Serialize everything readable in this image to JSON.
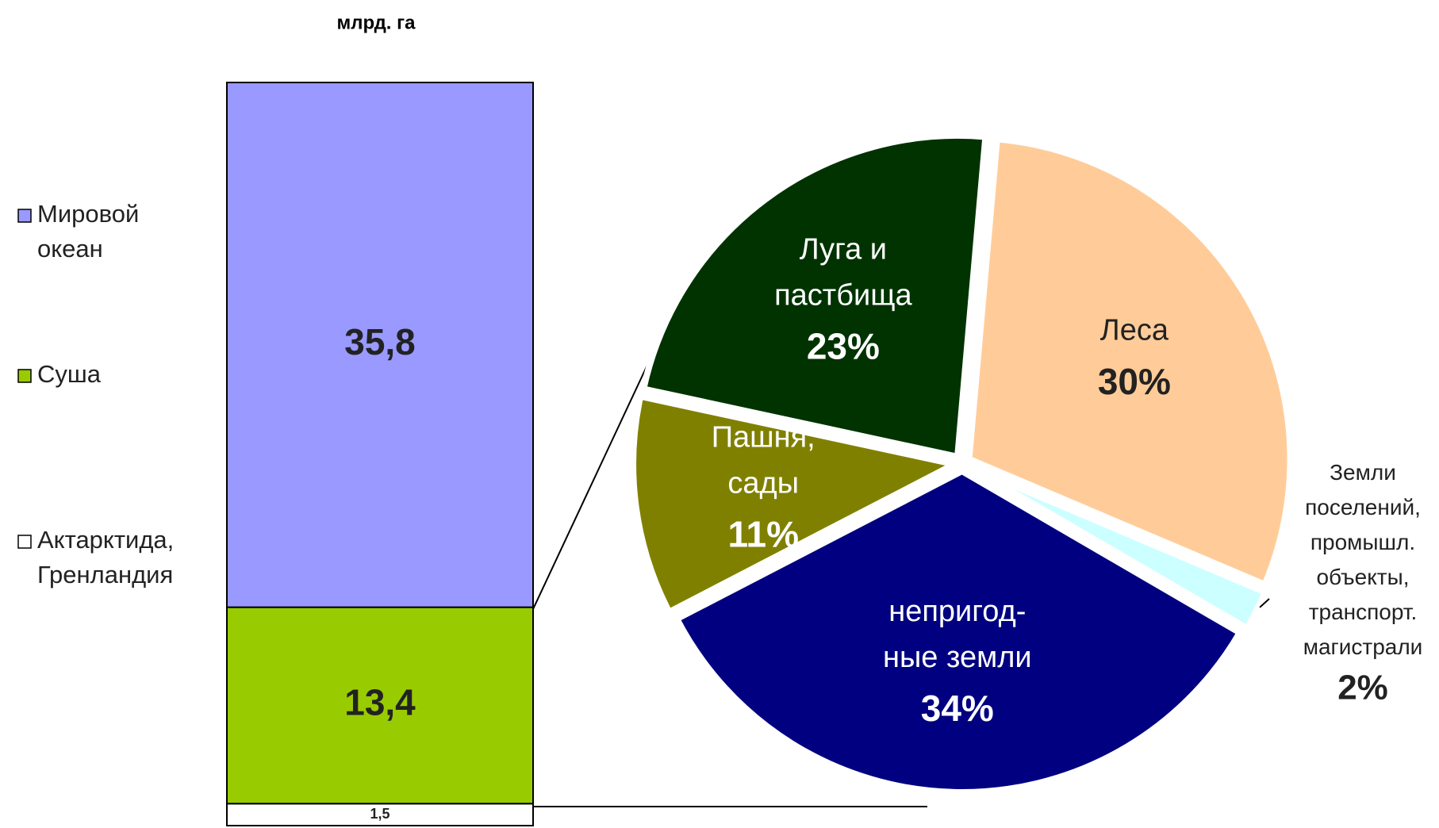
{
  "chart_data": [
    {
      "type": "stacked_column",
      "title": "млрд. га",
      "series": [
        {
          "name": "Актарктида,\nГренландия",
          "color": "#ffffff",
          "values": [
            1.5
          ],
          "value_labels": [
            "1,5"
          ]
        },
        {
          "name": "Суша",
          "color": "#99cc00",
          "values": [
            13.4
          ],
          "value_labels": [
            "13,4"
          ]
        },
        {
          "name": "Мировой\nокеан",
          "color": "#9999ff",
          "values": [
            35.8
          ],
          "value_labels": [
            "35,8"
          ]
        }
      ]
    },
    {
      "type": "pie",
      "categories": [
        "Леса",
        "Земли\nпоселений,\nпромышл.\nобъекты,\nтранспорт.\nмагистрали",
        "непригод-\nные земли",
        "Пашня,\nсады",
        "Луга и\nпастбища"
      ],
      "values": [
        30,
        2,
        34,
        11,
        23
      ],
      "value_labels": [
        "30%",
        "2%",
        "34%",
        "11%",
        "23%"
      ],
      "colors": [
        "#ffcc99",
        "#ccffff",
        "#000080",
        "#808000",
        "#003300"
      ]
    }
  ]
}
